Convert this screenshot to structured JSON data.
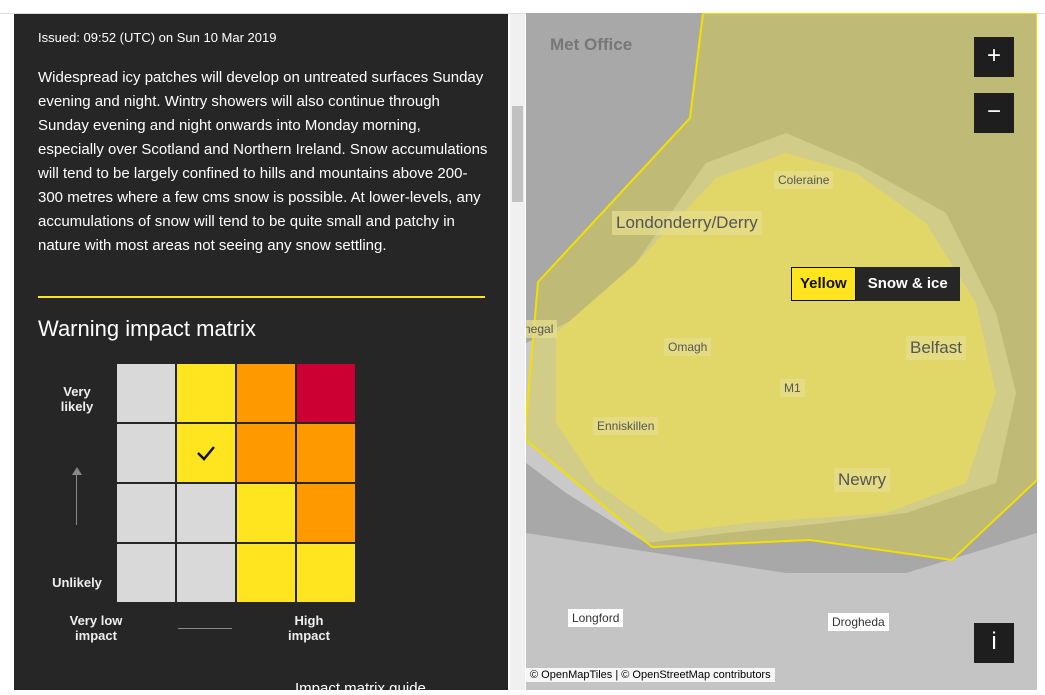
{
  "panel": {
    "issued": "Issued: 09:52 (UTC) on Sun 10 Mar 2019",
    "text": "Widespread icy patches will develop on untreated surfaces Sunday evening and night. Wintry showers will also continue through Sunday evening and night onwards into Monday morning, especially over Scotland and Northern Ireland. Snow accumulations will tend to be largely confined to hills and mountains above 200-300 metres where a few cms snow is possible. At lower-levels, any accumulations of snow will tend to be quite small and patchy in nature with most areas not seeing any snow settling.",
    "matrix_title": "Warning impact matrix",
    "matrix": {
      "cells": [
        [
          "#d9d9d9",
          "#ffe51f",
          "#ff9900",
          "#cc0033"
        ],
        [
          "#d9d9d9",
          "#ffe51f",
          "#ff9900",
          "#ff9900"
        ],
        [
          "#d9d9d9",
          "#d9d9d9",
          "#ffe51f",
          "#ff9900"
        ],
        [
          "#d9d9d9",
          "#d9d9d9",
          "#ffe51f",
          "#ffe51f"
        ]
      ],
      "checked": [
        1,
        1
      ]
    },
    "likelihood_high": "Very likely",
    "likelihood_low": "Unlikely",
    "impact_low": "Very low impact",
    "impact_high": "High impact",
    "guide_link": "Impact matrix guide"
  },
  "map": {
    "logo": "Met Office",
    "zoom_in": "+",
    "zoom_out": "−",
    "info": "i",
    "badge_level": "Yellow",
    "badge_type": "Snow & ice",
    "places": [
      "Coleraine",
      "Londonderry/Derry",
      "Omagh",
      "Belfast",
      "Enniskillen",
      "Newry",
      "M1",
      "negal",
      "Longford",
      "Drogheda"
    ],
    "attribution": "© OpenMapTiles | © OpenStreetMap contributors"
  }
}
